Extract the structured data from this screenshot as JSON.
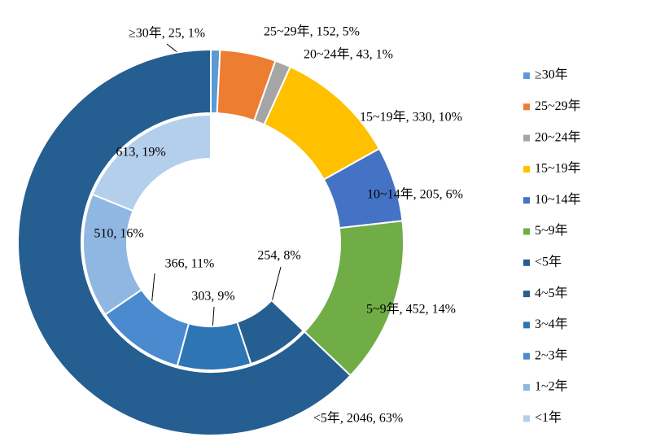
{
  "chart_data": {
    "type": "donut",
    "rings": [
      {
        "categories": [
          "≥30年",
          "25~29年",
          "20~24年",
          "15~19年",
          "10~14年",
          "5~9年",
          "<5年"
        ],
        "values": [
          25,
          152,
          43,
          330,
          205,
          452,
          2046
        ],
        "colors": [
          "#5b9bd5",
          "#ed7d31",
          "#a5a5a5",
          "#ffc000",
          "#4472c4",
          "#70ad47",
          "#255e91"
        ],
        "value_labels": [
          "≥30年, 25, 1%",
          "25~29年, 152, 5%",
          "20~24年, 43, 1%",
          "15~19年, 330, 10%",
          "10~14年, 205, 6%",
          "5~9年, 452, 14%",
          "<5年, 2046, 63%"
        ]
      },
      {
        "categories": [
          "4~5年",
          "3~4年",
          "2~3年",
          "1~2年",
          "<1年"
        ],
        "values": [
          254,
          303,
          366,
          510,
          613
        ],
        "colors": [
          "#255e91",
          "#2e75b6",
          "#4a8bd0",
          "#8fb7e2",
          "#b4cfec"
        ],
        "value_labels": [
          "254, 8%",
          "303, 9%",
          "366, 11%",
          "510, 16%",
          "613, 19%"
        ]
      }
    ]
  }
}
